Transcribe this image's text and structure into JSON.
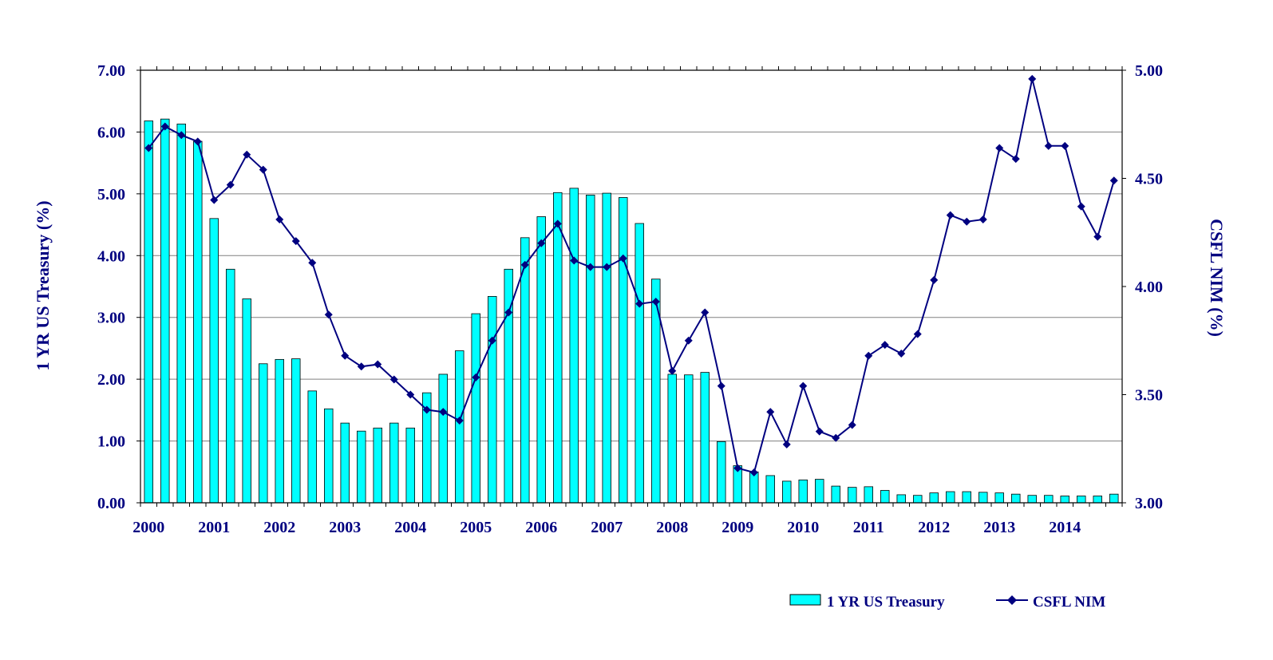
{
  "colors": {
    "bar_fill": "#00FFFF",
    "bar_stroke": "#000000",
    "line": "#000080",
    "text": "#000080",
    "grid": "#808080"
  },
  "chart_data": {
    "type": "bar",
    "x_axis_labels": [
      "2000",
      "2001",
      "2002",
      "2003",
      "2004",
      "2005",
      "2006",
      "2007",
      "2008",
      "2009",
      "2010",
      "2011",
      "2012",
      "2013",
      "2014"
    ],
    "left_axis": {
      "label": "1 YR US Treasury (%)",
      "ylim": [
        0,
        7
      ],
      "ticks": [
        "0.00",
        "1.00",
        "2.00",
        "3.00",
        "4.00",
        "5.00",
        "6.00",
        "7.00"
      ]
    },
    "right_axis": {
      "label": "CSFL NIM (%)",
      "ylim": [
        3,
        5
      ],
      "ticks": [
        "3.00",
        "3.50",
        "4.00",
        "4.50",
        "5.00"
      ]
    },
    "grid": true,
    "legend_position": "bottom-right",
    "series": [
      {
        "name": "1 YR US Treasury",
        "type": "bar",
        "axis": "left",
        "values": [
          6.18,
          6.21,
          6.13,
          5.85,
          4.6,
          3.78,
          3.3,
          2.25,
          2.32,
          2.33,
          1.81,
          1.52,
          1.29,
          1.16,
          1.21,
          1.29,
          1.21,
          1.78,
          2.08,
          2.46,
          3.06,
          3.34,
          3.78,
          4.29,
          4.63,
          5.02,
          5.09,
          4.98,
          5.01,
          4.94,
          4.52,
          3.62,
          2.08,
          2.07,
          2.11,
          0.99,
          0.6,
          0.5,
          0.44,
          0.35,
          0.37,
          0.38,
          0.27,
          0.25,
          0.26,
          0.2,
          0.13,
          0.12,
          0.16,
          0.18,
          0.18,
          0.17,
          0.16,
          0.14,
          0.12,
          0.12,
          0.11,
          0.11,
          0.11,
          0.14
        ]
      },
      {
        "name": "CSFL NIM",
        "type": "line",
        "axis": "right",
        "values": [
          4.64,
          4.74,
          4.7,
          4.67,
          4.4,
          4.47,
          4.61,
          4.54,
          4.31,
          4.21,
          4.11,
          3.87,
          3.68,
          3.63,
          3.64,
          3.57,
          3.5,
          3.43,
          3.42,
          3.38,
          3.58,
          3.75,
          3.88,
          4.1,
          4.2,
          4.29,
          4.12,
          4.09,
          4.09,
          4.13,
          3.92,
          3.93,
          3.61,
          3.75,
          3.88,
          3.54,
          3.16,
          3.14,
          3.42,
          3.27,
          3.54,
          3.33,
          3.3,
          3.36,
          3.68,
          3.73,
          3.69,
          3.78,
          4.03,
          4.33,
          4.3,
          4.31,
          4.64,
          4.59,
          4.96,
          4.65,
          4.65,
          4.37,
          4.23,
          4.49
        ]
      }
    ]
  }
}
